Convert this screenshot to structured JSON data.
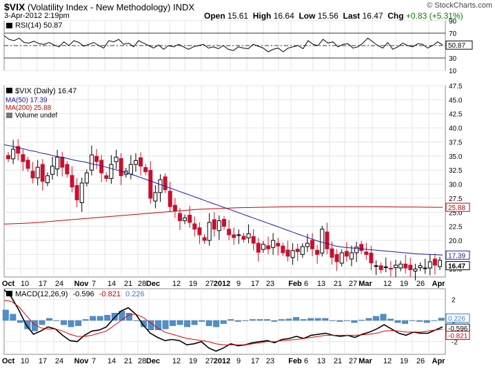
{
  "header": {
    "symbol": "$VIX",
    "name": "(Volatility Index - New Methodology)",
    "exchange": "INDX",
    "datetime": "3-Apr-2012 2:19pm",
    "logo": "© StockCharts.com",
    "open_label": "Open",
    "open": "15.61",
    "high_label": "High",
    "high": "16.64",
    "low_label": "Low",
    "low": "15.56",
    "last_label": "Last",
    "last": "16.47",
    "chg_label": "Chg",
    "chg": "+0.83 (+5.31%)",
    "chg_color": "#008000"
  },
  "chart_data": [
    {
      "type": "line",
      "panel": "rsi",
      "legend": "RSI(14) 50.87",
      "y_ticks": [
        "90",
        "70",
        "50",
        "30",
        "10"
      ],
      "ylim": [
        10,
        90
      ],
      "reference_lines": [
        70,
        50,
        30
      ],
      "last_value": "50.87",
      "series": [
        {
          "name": "RSI(14)",
          "color": "#000000",
          "values": [
            66,
            60,
            58,
            62,
            55,
            54,
            57,
            53,
            52,
            55,
            51,
            48,
            56,
            50,
            58,
            55,
            49,
            52,
            55,
            50,
            46,
            58,
            56,
            60,
            52,
            54,
            48,
            58,
            54,
            50,
            46,
            51,
            44,
            50,
            48,
            52,
            48,
            44,
            48,
            50,
            52,
            46,
            48,
            45,
            50,
            44,
            42,
            48,
            46,
            45,
            52,
            49,
            46,
            40,
            44,
            46,
            40,
            46,
            48,
            50,
            45,
            58,
            52,
            50,
            60,
            54,
            56,
            48,
            52,
            53,
            46,
            48,
            54,
            62,
            56,
            50,
            46,
            55,
            44,
            48,
            54,
            50,
            48,
            53,
            52,
            46,
            50,
            56,
            51
          ]
        }
      ]
    },
    {
      "type": "candlestick",
      "panel": "price",
      "legend": [
        "$VIX (Daily) 16.47",
        "MA(50) 17.39",
        "MA(200) 25.88",
        "Volume undef"
      ],
      "y_ticks": [
        "47.5",
        "45.0",
        "42.5",
        "40.0",
        "37.5",
        "35.0",
        "32.5",
        "30.0",
        "27.5",
        "25.0",
        "22.5",
        "20.0",
        "17.5",
        "15.0"
      ],
      "ylim": [
        13.5,
        47.5
      ],
      "x_ticks": [
        "Oct",
        "10",
        "17",
        "24",
        "Nov",
        "7",
        "14",
        "21",
        "28",
        "Dec",
        "12",
        "19",
        "27",
        "2012",
        "9",
        "17",
        "23",
        "Feb",
        "6",
        "13",
        "21",
        "27",
        "Mar",
        "12",
        "19",
        "26",
        "Apr"
      ],
      "close": [
        34.5,
        36.2,
        35.5,
        34.0,
        32.8,
        31.1,
        33.0,
        30.5,
        31.5,
        33.2,
        34.8,
        33.0,
        31.8,
        29.5,
        27.2,
        30.2,
        32.0,
        35.2,
        34.0,
        32.0,
        31.0,
        33.5,
        34.8,
        31.5,
        32.3,
        33.5,
        34.2,
        33.2,
        32.2,
        27.5,
        28.5,
        30.8,
        29.0,
        26.0,
        25.3,
        23.5,
        24.0,
        23.2,
        22.0,
        21.0,
        20.0,
        23.2,
        22.0,
        23.5,
        22.5,
        21.0,
        20.5,
        21.0,
        20.2,
        21.2,
        19.5,
        17.9,
        19.3,
        18.5,
        20.0,
        19.0,
        17.8,
        17.2,
        18.2,
        18.0,
        18.9,
        19.5,
        18.5,
        17.5,
        22.0,
        18.5,
        17.0,
        16.2,
        17.8,
        17.2,
        17.8,
        18.8,
        18.2,
        17.5,
        16.0,
        15.5,
        14.8,
        15.3,
        14.9,
        15.6,
        15.8,
        15.1,
        14.8,
        14.9,
        15.5,
        15.1,
        16.2,
        15.6,
        16.47
      ],
      "ma50": [
        37.0,
        36.8,
        36.5,
        36.3,
        36.0,
        35.8,
        35.5,
        35.3,
        35.0,
        34.8,
        34.6,
        34.3,
        34.1,
        33.9,
        33.6,
        33.4,
        33.1,
        32.8,
        32.5,
        32.2,
        31.8,
        31.5,
        31.1,
        30.7,
        30.3,
        29.9,
        29.5,
        29.1,
        28.7,
        28.3,
        27.9,
        27.5,
        27.1,
        26.7,
        26.3,
        25.9,
        25.5,
        25.1,
        24.7,
        24.3,
        23.9,
        23.5,
        23.1,
        22.7,
        22.3,
        21.9,
        21.5,
        21.1,
        20.7,
        20.3,
        19.9,
        19.6,
        19.3,
        19.0,
        18.8,
        18.7,
        18.6,
        18.5,
        18.4,
        18.3,
        18.2,
        18.1,
        18.0,
        17.9,
        17.8,
        17.7,
        17.6,
        17.55,
        17.5,
        17.45,
        17.39
      ],
      "ma200": [
        22.9,
        23.0,
        23.1,
        23.3,
        23.5,
        23.7,
        23.9,
        24.1,
        24.3,
        24.5,
        24.7,
        24.9,
        25.1,
        25.3,
        25.5,
        25.6,
        25.7,
        25.8,
        25.85,
        25.9,
        25.95,
        26.0,
        26.0,
        26.0,
        26.0,
        26.0,
        26.0,
        25.98,
        25.96,
        25.94,
        25.92,
        25.9,
        25.88
      ],
      "last_value": "16.47",
      "ma50_value": "17.39",
      "ma200_value": "25.88",
      "up_color": "#000000",
      "down_color": "#c8102e",
      "ma50_color": "#1c1ca0",
      "ma200_color": "#cc0000"
    },
    {
      "type": "line",
      "panel": "macd",
      "legend": [
        "MACD(12,26,9)",
        "-0.596",
        "-0.821",
        "0.226"
      ],
      "y_ticks": [
        "2",
        "0",
        "-2"
      ],
      "ylim": [
        -3.2,
        3.0
      ],
      "x_ticks": [
        "Oct",
        "10",
        "17",
        "24",
        "Nov",
        "7",
        "14",
        "21",
        "28",
        "Dec",
        "12",
        "19",
        "27",
        "2012",
        "9",
        "17",
        "23",
        "Feb",
        "6",
        "13",
        "21",
        "27",
        "Mar",
        "12",
        "19",
        "26",
        "Apr"
      ],
      "last_values": [
        "0.226",
        "-0.596",
        "-0.821"
      ],
      "series": [
        {
          "name": "MACD",
          "color": "#000000",
          "values": [
            2.9,
            2.2,
            1.0,
            -0.4,
            -1.3,
            -1.0,
            -0.6,
            -0.8,
            -1.4,
            -1.9,
            -2.0,
            -1.4,
            -1.0,
            -0.9,
            -0.6,
            0.2,
            0.9,
            1.2,
            0.6,
            -0.4,
            -1.2,
            -1.6,
            -1.9,
            -1.8,
            -1.9,
            -2.3,
            -2.2,
            -2.0,
            -2.6,
            -2.9,
            -2.6,
            -2.2,
            -2.4,
            -2.3,
            -2.1,
            -2.0,
            -1.9,
            -2.1,
            -1.8,
            -1.7,
            -1.5,
            -1.7,
            -1.4,
            -1.3,
            -1.2,
            -1.4,
            -1.5,
            -1.4,
            -1.6,
            -1.3,
            -1.1,
            -0.8,
            -0.4,
            -0.8,
            -1.2,
            -1.4,
            -1.1,
            -1.2,
            -1.2,
            -0.9,
            -0.596
          ]
        },
        {
          "name": "Signal",
          "color": "#dd0000",
          "values": [
            1.9,
            1.8,
            1.3,
            0.5,
            -0.3,
            -0.7,
            -0.8,
            -0.8,
            -1.0,
            -1.3,
            -1.5,
            -1.5,
            -1.4,
            -1.2,
            -1.0,
            -0.5,
            0.0,
            0.5,
            0.6,
            0.3,
            -0.2,
            -0.7,
            -1.1,
            -1.3,
            -1.5,
            -1.7,
            -1.8,
            -1.9,
            -2.0,
            -2.2,
            -2.3,
            -2.3,
            -2.3,
            -2.3,
            -2.2,
            -2.1,
            -2.0,
            -2.0,
            -1.9,
            -1.85,
            -1.8,
            -1.7,
            -1.6,
            -1.5,
            -1.4,
            -1.4,
            -1.4,
            -1.4,
            -1.4,
            -1.35,
            -1.3,
            -1.2,
            -1.0,
            -0.95,
            -1.0,
            -1.1,
            -1.1,
            -1.1,
            -1.0,
            -0.9,
            -0.821
          ]
        }
      ],
      "histogram": {
        "name": "Histogram",
        "color": "#4f8fcc",
        "values": [
          1.0,
          0.6,
          -0.2,
          -0.8,
          -1.0,
          -0.4,
          0.2,
          0.0,
          -0.4,
          -0.6,
          -0.5,
          0.1,
          0.4,
          0.4,
          0.5,
          0.7,
          0.9,
          0.7,
          0.0,
          -0.6,
          -0.9,
          -0.9,
          -0.8,
          -0.5,
          -0.4,
          -0.6,
          -0.4,
          -0.1,
          -0.5,
          -0.6,
          -0.3,
          0.1,
          -0.1,
          0.0,
          0.1,
          0.1,
          0.1,
          -0.1,
          0.1,
          0.15,
          0.3,
          0.1,
          0.2,
          0.2,
          0.2,
          0.0,
          -0.1,
          0.0,
          -0.2,
          0.05,
          0.2,
          0.4,
          0.6,
          0.15,
          -0.2,
          -0.3,
          0.0,
          -0.1,
          -0.2,
          0.0,
          0.226
        ]
      }
    }
  ]
}
